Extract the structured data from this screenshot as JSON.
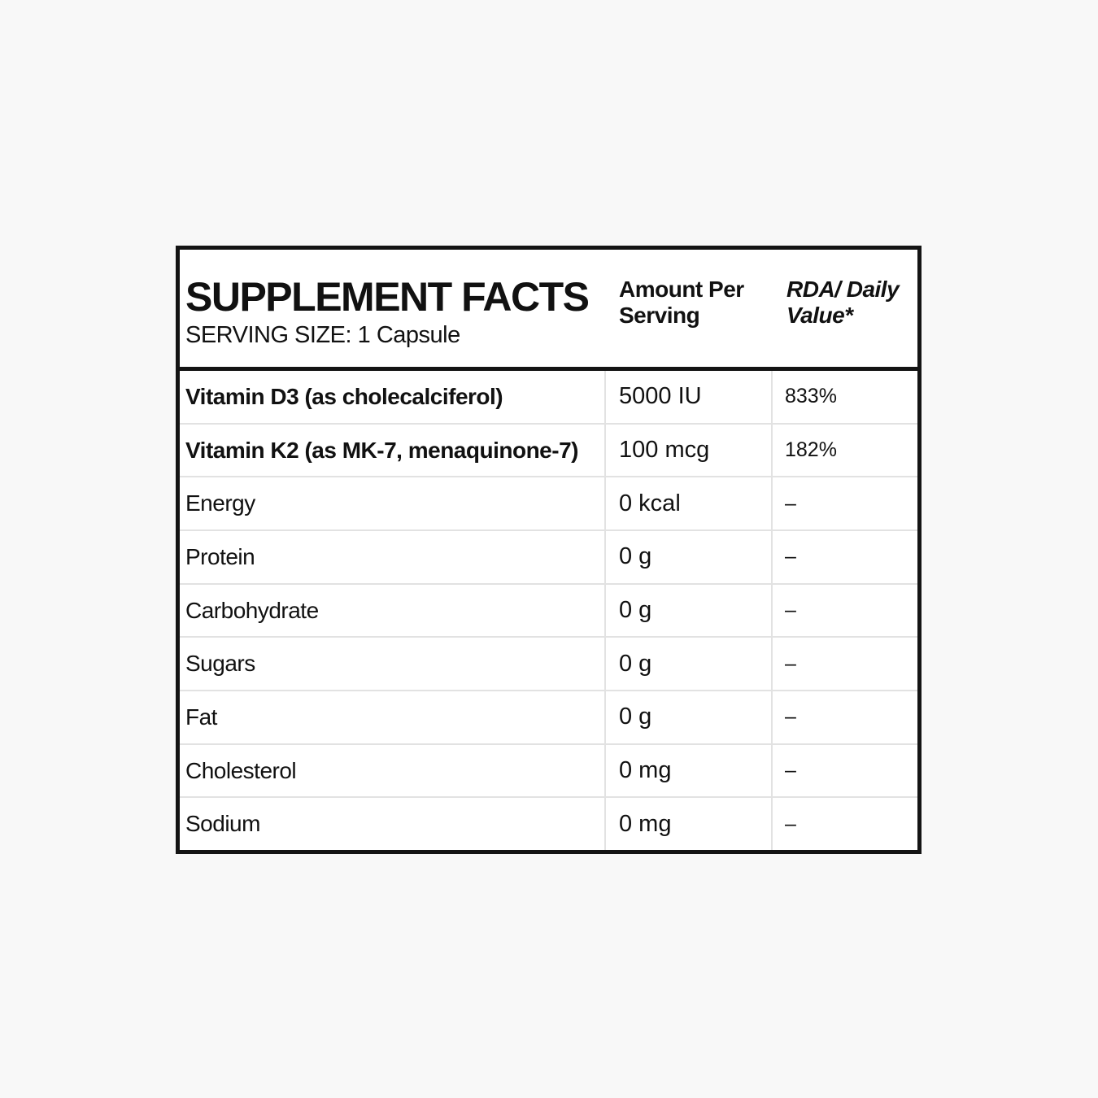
{
  "header": {
    "title": "SUPPLEMENT FACTS",
    "serving_size": "SERVING SIZE: 1 Capsule",
    "col_amount": "Amount Per Serving",
    "col_rda": "RDA/ Daily Value*"
  },
  "table": {
    "rows": [
      {
        "name": "Vitamin D3 (as cholecalciferol)",
        "amount": "5000 IU",
        "rda": "833%"
      },
      {
        "name": "Vitamin K2 (as MK-7, menaquinone-7)",
        "amount": "100 mcg",
        "rda": "182%"
      },
      {
        "name": "Energy",
        "amount": "0 kcal",
        "rda": "–"
      },
      {
        "name": "Protein",
        "amount": "0 g",
        "rda": "–"
      },
      {
        "name": "Carbohydrate",
        "amount": "0 g",
        "rda": "–"
      },
      {
        "name": "Sugars",
        "amount": "0 g",
        "rda": "–"
      },
      {
        "name": "Fat",
        "amount": "0 g",
        "rda": "–"
      },
      {
        "name": "Cholesterol",
        "amount": "0 mg",
        "rda": "–"
      },
      {
        "name": "Sodium",
        "amount": "0 mg",
        "rda": "–"
      }
    ]
  },
  "colors": {
    "page_background": "#f8f8f8",
    "card_background": "#ffffff",
    "frame": "#141414",
    "grid_line": "#e2e2e2",
    "text": "#111111"
  }
}
